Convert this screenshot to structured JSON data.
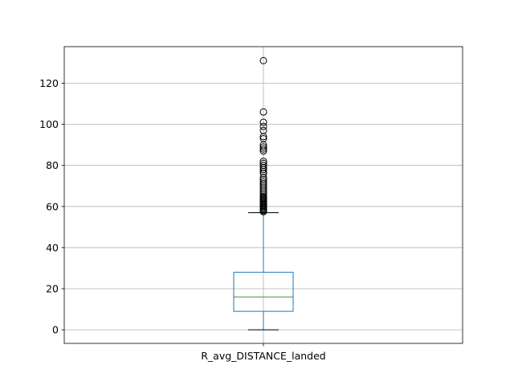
{
  "chart_data": {
    "type": "box",
    "categories": [
      "R_avg_DISTANCE_landed"
    ],
    "ylim": [
      -6.6,
      137.8
    ],
    "yticks": [
      0,
      20,
      40,
      60,
      80,
      100,
      120
    ],
    "grid": true,
    "box": {
      "q1": 9,
      "median": 16,
      "q3": 28,
      "whisker_low": 0,
      "whisker_high": 57
    },
    "outliers": [
      57.5,
      58,
      58.5,
      59,
      59.5,
      60,
      60.5,
      61,
      61.5,
      62,
      62.5,
      63,
      63.5,
      64,
      64.5,
      65,
      66,
      67,
      68,
      69,
      70,
      71,
      72,
      73,
      74,
      76,
      77,
      78,
      79,
      80,
      81,
      82,
      87,
      88,
      89,
      90,
      93,
      94,
      97,
      99,
      101,
      106,
      131
    ],
    "colors": {
      "box": "#1f77b4",
      "median": "#2ca02c",
      "whisker": "#1f77b4",
      "cap": "#000000",
      "flier": "#000000",
      "grid": "#b0b0b0"
    }
  }
}
